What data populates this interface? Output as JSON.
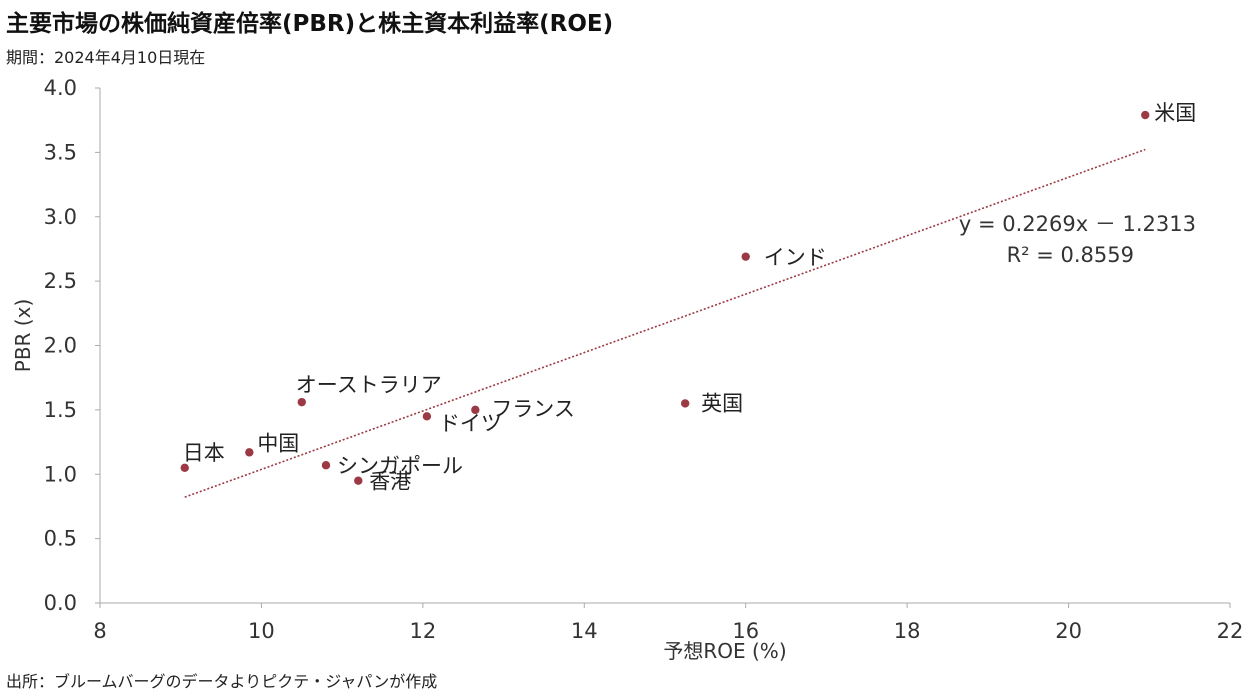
{
  "title": "主要市場の株価純資産倍率(PBR)と株主資本利益率(ROE)",
  "subtitle": "期間：2024年4月10日現在",
  "source": "出所：ブルームバーグのデータよりピクテ・ジャパンが作成",
  "chart_data": {
    "type": "scatter",
    "xlabel": "予想ROE (%)",
    "ylabel": "PBR (x)",
    "xlim": [
      8,
      22
    ],
    "ylim": [
      0,
      4
    ],
    "x_ticks": [
      "8",
      "10",
      "12",
      "14",
      "16",
      "18",
      "20",
      "22"
    ],
    "y_ticks": [
      "0.0",
      "0.5",
      "1.0",
      "1.5",
      "2.0",
      "2.5",
      "3.0",
      "3.5",
      "4.0"
    ],
    "points": [
      {
        "label": "日本",
        "x": 9.05,
        "y": 1.05
      },
      {
        "label": "中国",
        "x": 9.85,
        "y": 1.17
      },
      {
        "label": "オーストラリア",
        "x": 10.5,
        "y": 1.56
      },
      {
        "label": "シンガポール",
        "x": 10.8,
        "y": 1.07
      },
      {
        "label": "香港",
        "x": 11.2,
        "y": 0.95
      },
      {
        "label": "ドイツ",
        "x": 12.05,
        "y": 1.45
      },
      {
        "label": "フランス",
        "x": 12.65,
        "y": 1.5
      },
      {
        "label": "英国",
        "x": 15.25,
        "y": 1.55
      },
      {
        "label": "インド",
        "x": 16.0,
        "y": 2.69
      },
      {
        "label": "米国",
        "x": 20.95,
        "y": 3.79
      }
    ],
    "trendline": {
      "slope": 0.2269,
      "intercept": -1.2313,
      "x_range": [
        9.05,
        20.95
      ],
      "equation": "y = 0.2269x － 1.2313",
      "r_squared": "R² = 0.8559"
    },
    "colors": {
      "point": "#9b3a44",
      "trendline": "#9b3a44",
      "axis": "#aaaaaa"
    },
    "grid": false,
    "legend": "none"
  }
}
